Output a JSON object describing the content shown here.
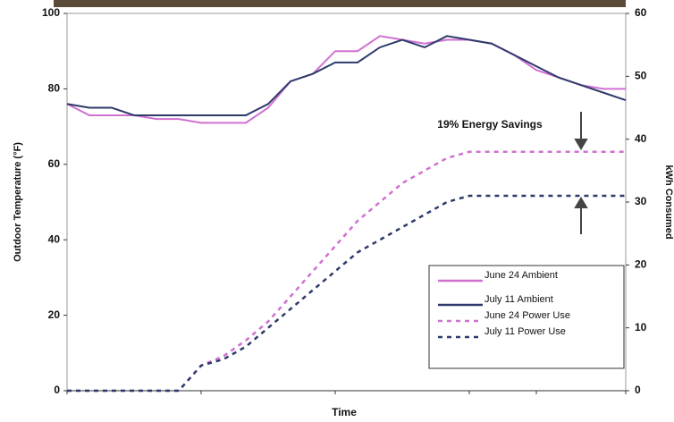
{
  "chart_data": {
    "type": "line",
    "xlabel": "Time",
    "ylabel": "Outdoor Temperature (°F)",
    "y2label": "kWh Consumed",
    "annotation": "19% Energy Savings",
    "categories": [
      null,
      null,
      null,
      null,
      null,
      null,
      null,
      null,
      null,
      null,
      null,
      null,
      null,
      null,
      null,
      null,
      null,
      null,
      null,
      null,
      null,
      null,
      null,
      null,
      null,
      null
    ],
    "ylim": [
      0,
      100
    ],
    "yticks": [
      0,
      20,
      40,
      60,
      80,
      100
    ],
    "y2lim": [
      0,
      60
    ],
    "y2ticks": [
      0,
      10,
      20,
      30,
      40,
      50,
      60
    ],
    "series": [
      {
        "name": "June 24 Ambient",
        "color": "#d070d0",
        "dash": false,
        "values": [
          76,
          73,
          73,
          73,
          72,
          72,
          71,
          71,
          71,
          75,
          82,
          84,
          90,
          90,
          94,
          93,
          92,
          93,
          93,
          92,
          89,
          85,
          83,
          81,
          80,
          80
        ]
      },
      {
        "name": "July 11 Ambient",
        "color": "#2e3a6a",
        "dash": false,
        "values": [
          76,
          75,
          75,
          73,
          73,
          73,
          73,
          73,
          73,
          76,
          82,
          84,
          87,
          87,
          91,
          93,
          91,
          94,
          93,
          92,
          89,
          86,
          83,
          81,
          79,
          77
        ]
      },
      {
        "name": "June 24 Power Use",
        "color": "#d070d0",
        "dash": true,
        "axis": "y2",
        "values": [
          0,
          0,
          0,
          0,
          0,
          0,
          4,
          5.5,
          8,
          11,
          15,
          19,
          23,
          27,
          30,
          33,
          35,
          37,
          38,
          38,
          38,
          38,
          38,
          38,
          38,
          38
        ]
      },
      {
        "name": "July 11 Power Use",
        "color": "#2e3a6a",
        "dash": true,
        "axis": "y2",
        "values": [
          0,
          0,
          0,
          0,
          0,
          0,
          4,
          5,
          7,
          10,
          13,
          16,
          19,
          22,
          24,
          26,
          28,
          30,
          31,
          31,
          31,
          31,
          31,
          31,
          31,
          31
        ]
      }
    ]
  }
}
